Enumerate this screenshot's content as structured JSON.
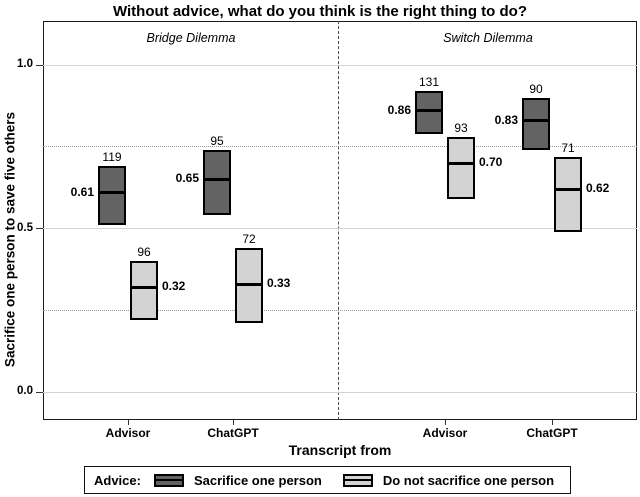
{
  "chart_data": {
    "type": "boxplot",
    "title": "Without advice, what do you think is the right thing to do?",
    "xlabel": "Transcript from",
    "ylabel": "Sacrifice one person to save five others",
    "ylim": [
      0,
      1
    ],
    "yticks": [
      {
        "value": 1,
        "label": "1.0"
      },
      {
        "value": 0.5,
        "label": "0.5"
      },
      {
        "value": 0,
        "label": "0.0"
      }
    ],
    "yminor_dotted": [
      0.75,
      0.25
    ],
    "grid": "major solid, minor dotted",
    "facets": [
      "Bridge Dilemma",
      "Switch Dilemma"
    ],
    "categories": [
      "Advisor",
      "ChatGPT"
    ],
    "legend_title": "Advice:",
    "legend_position": "bottom",
    "series": [
      {
        "name": "Sacrifice one person",
        "color": "#636363"
      },
      {
        "name": "Do not sacrifice one person",
        "color": "#d3d3d3"
      }
    ],
    "points": [
      {
        "facet": "Bridge Dilemma",
        "category": "Advisor",
        "series": "Sacrifice one person",
        "mean": 0.61,
        "lo": 0.51,
        "hi": 0.69,
        "n": 119,
        "label_side": "left"
      },
      {
        "facet": "Bridge Dilemma",
        "category": "Advisor",
        "series": "Do not sacrifice one person",
        "mean": 0.32,
        "lo": 0.22,
        "hi": 0.4,
        "n": 96,
        "label_side": "right"
      },
      {
        "facet": "Bridge Dilemma",
        "category": "ChatGPT",
        "series": "Sacrifice one person",
        "mean": 0.65,
        "lo": 0.54,
        "hi": 0.74,
        "n": 95,
        "label_side": "left"
      },
      {
        "facet": "Bridge Dilemma",
        "category": "ChatGPT",
        "series": "Do not sacrifice one person",
        "mean": 0.33,
        "lo": 0.21,
        "hi": 0.44,
        "n": 72,
        "label_side": "right"
      },
      {
        "facet": "Switch Dilemma",
        "category": "Advisor",
        "series": "Sacrifice one person",
        "mean": 0.86,
        "lo": 0.79,
        "hi": 0.92,
        "n": 131,
        "label_side": "left"
      },
      {
        "facet": "Switch Dilemma",
        "category": "Advisor",
        "series": "Do not sacrifice one person",
        "mean": 0.7,
        "lo": 0.59,
        "hi": 0.78,
        "n": 93,
        "label_side": "right"
      },
      {
        "facet": "Switch Dilemma",
        "category": "ChatGPT",
        "series": "Sacrifice one person",
        "mean": 0.83,
        "lo": 0.74,
        "hi": 0.9,
        "n": 90,
        "label_side": "left"
      },
      {
        "facet": "Switch Dilemma",
        "category": "ChatGPT",
        "series": "Do not sacrifice one person",
        "mean": 0.62,
        "lo": 0.49,
        "hi": 0.72,
        "n": 71,
        "label_side": "right"
      }
    ]
  }
}
